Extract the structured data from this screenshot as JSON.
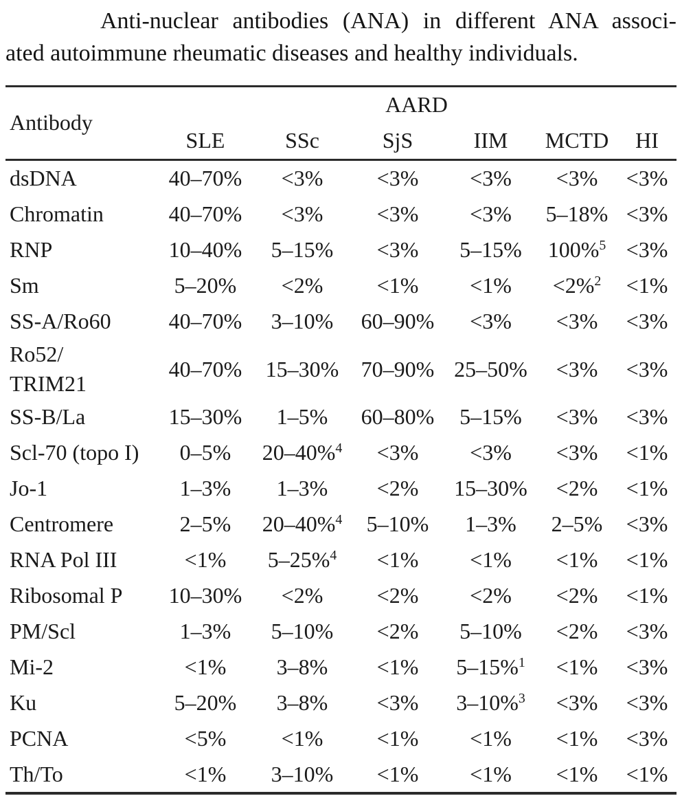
{
  "caption": {
    "line1": "Anti-nuclear antibodies (ANA) in different ANA associ-",
    "line2": "ated autoimmune rheumatic diseases and healthy individuals."
  },
  "table": {
    "row_header": "Antibody",
    "group_header": "AARD",
    "columns": [
      "SLE",
      "SSc",
      "SjS",
      "IIM",
      "MCTD",
      "HI"
    ],
    "rows": [
      {
        "antibody": "dsDNA",
        "values": [
          {
            "v": "40–70%"
          },
          {
            "v": "<3%"
          },
          {
            "v": "<3%"
          },
          {
            "v": "<3%"
          },
          {
            "v": "<3%"
          },
          {
            "v": "<3%"
          }
        ]
      },
      {
        "antibody": "Chromatin",
        "values": [
          {
            "v": "40–70%"
          },
          {
            "v": "<3%"
          },
          {
            "v": "<3%"
          },
          {
            "v": "<3%"
          },
          {
            "v": "5–18%"
          },
          {
            "v": "<3%"
          }
        ]
      },
      {
        "antibody": "RNP",
        "values": [
          {
            "v": "10–40%"
          },
          {
            "v": "5–15%"
          },
          {
            "v": "<3%"
          },
          {
            "v": "5–15%"
          },
          {
            "v": "100%",
            "sup": "5"
          },
          {
            "v": "<3%"
          }
        ]
      },
      {
        "antibody": "Sm",
        "values": [
          {
            "v": "5–20%"
          },
          {
            "v": "<2%"
          },
          {
            "v": "<1%"
          },
          {
            "v": "<1%"
          },
          {
            "v": "<2%",
            "sup": "2"
          },
          {
            "v": "<1%"
          }
        ]
      },
      {
        "antibody": "SS-A/Ro60",
        "values": [
          {
            "v": "40–70%"
          },
          {
            "v": "3–10%"
          },
          {
            "v": "60–90%"
          },
          {
            "v": "<3%"
          },
          {
            "v": "<3%"
          },
          {
            "v": "<3%"
          }
        ]
      },
      {
        "antibody": "Ro52/\nTRIM21",
        "values": [
          {
            "v": "40–70%"
          },
          {
            "v": "15–30%"
          },
          {
            "v": "70–90%"
          },
          {
            "v": "25–50%"
          },
          {
            "v": "<3%"
          },
          {
            "v": "<3%"
          }
        ]
      },
      {
        "antibody": "SS-B/La",
        "values": [
          {
            "v": "15–30%"
          },
          {
            "v": "1–5%"
          },
          {
            "v": "60–80%"
          },
          {
            "v": "5–15%"
          },
          {
            "v": "<3%"
          },
          {
            "v": "<3%"
          }
        ]
      },
      {
        "antibody": "Scl-70 (topo I)",
        "values": [
          {
            "v": "0–5%"
          },
          {
            "v": "20–40%",
            "sup": "4"
          },
          {
            "v": "<3%"
          },
          {
            "v": "<3%"
          },
          {
            "v": "<3%"
          },
          {
            "v": "<1%"
          }
        ]
      },
      {
        "antibody": "Jo-1",
        "values": [
          {
            "v": "1–3%"
          },
          {
            "v": "1–3%"
          },
          {
            "v": "<2%"
          },
          {
            "v": "15–30%"
          },
          {
            "v": "<2%"
          },
          {
            "v": "<1%"
          }
        ]
      },
      {
        "antibody": "Centromere",
        "values": [
          {
            "v": "2–5%"
          },
          {
            "v": "20–40%",
            "sup": "4"
          },
          {
            "v": "5–10%"
          },
          {
            "v": "1–3%"
          },
          {
            "v": "2–5%"
          },
          {
            "v": "<3%"
          }
        ]
      },
      {
        "antibody": "RNA Pol III",
        "values": [
          {
            "v": "<1%"
          },
          {
            "v": "5–25%",
            "sup": "4"
          },
          {
            "v": "<1%"
          },
          {
            "v": "<1%"
          },
          {
            "v": "<1%"
          },
          {
            "v": "<1%"
          }
        ]
      },
      {
        "antibody": "Ribosomal P",
        "values": [
          {
            "v": "10–30%"
          },
          {
            "v": "<2%"
          },
          {
            "v": "<2%"
          },
          {
            "v": "<2%"
          },
          {
            "v": "<2%"
          },
          {
            "v": "<1%"
          }
        ]
      },
      {
        "antibody": "PM/Scl",
        "values": [
          {
            "v": "1–3%"
          },
          {
            "v": "5–10%"
          },
          {
            "v": "<2%"
          },
          {
            "v": "5–10%"
          },
          {
            "v": "<2%"
          },
          {
            "v": "<3%"
          }
        ]
      },
      {
        "antibody": "Mi-2",
        "values": [
          {
            "v": "<1%"
          },
          {
            "v": "3–8%"
          },
          {
            "v": "<1%"
          },
          {
            "v": "5–15%",
            "sup": "1"
          },
          {
            "v": "<1%"
          },
          {
            "v": "<3%"
          }
        ]
      },
      {
        "antibody": "Ku",
        "values": [
          {
            "v": "5–20%"
          },
          {
            "v": "3–8%"
          },
          {
            "v": "<3%"
          },
          {
            "v": "3–10%",
            "sup": "3"
          },
          {
            "v": "<3%"
          },
          {
            "v": "<3%"
          }
        ]
      },
      {
        "antibody": "PCNA",
        "values": [
          {
            "v": "<5%"
          },
          {
            "v": "<1%"
          },
          {
            "v": "<1%"
          },
          {
            "v": "<1%"
          },
          {
            "v": "<1%"
          },
          {
            "v": "<3%"
          }
        ]
      },
      {
        "antibody": "Th/To",
        "values": [
          {
            "v": "<1%"
          },
          {
            "v": "3–10%"
          },
          {
            "v": "<1%"
          },
          {
            "v": "<1%"
          },
          {
            "v": "<1%"
          },
          {
            "v": "<1%"
          }
        ]
      }
    ]
  }
}
